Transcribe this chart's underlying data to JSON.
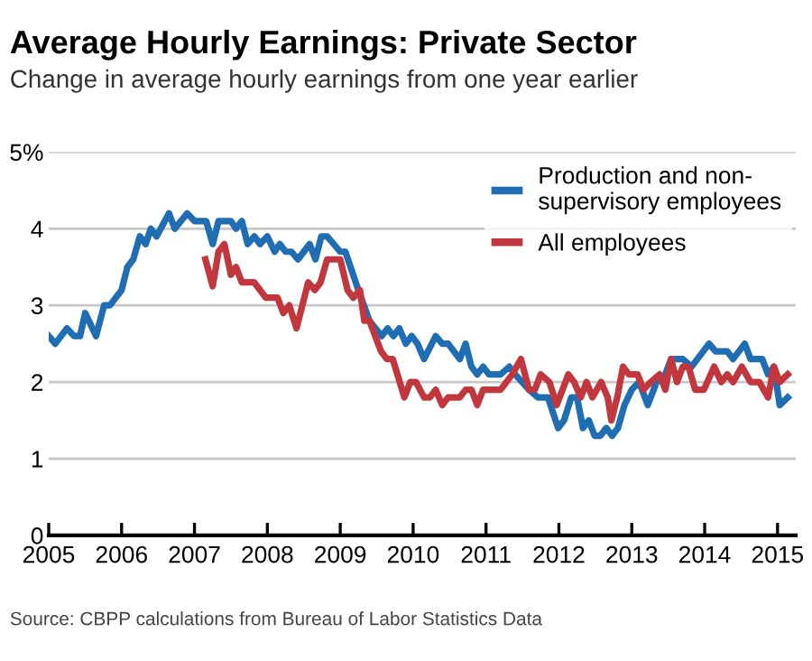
{
  "chart_data": {
    "type": "line",
    "title": "Average Hourly Earnings: Private Sector",
    "subtitle": "Change in average hourly earnings from one year earlier",
    "annotations": [
      "Source: CBPP calculations from Bureau of Labor Statistics Data"
    ],
    "series": [
      {
        "name": "Production and non-\nsupervisory employees",
        "color": "#1f6db3",
        "x": [
          2005.0,
          2005.09,
          2005.25,
          2005.35,
          2005.43,
          2005.5,
          2005.65,
          2005.76,
          2005.84,
          2006.0,
          2006.08,
          2006.16,
          2006.25,
          2006.33,
          2006.4,
          2006.48,
          2006.65,
          2006.73,
          2006.9,
          2007.0,
          2007.16,
          2007.25,
          2007.33,
          2007.5,
          2007.57,
          2007.65,
          2007.73,
          2007.82,
          2007.9,
          2008.0,
          2008.1,
          2008.17,
          2008.25,
          2008.33,
          2008.42,
          2008.58,
          2008.66,
          2008.74,
          2008.82,
          2009.0,
          2009.07,
          2009.23,
          2009.4,
          2009.57,
          2009.65,
          2009.73,
          2009.81,
          2009.9,
          2009.98,
          2010.06,
          2010.15,
          2010.31,
          2010.4,
          2010.48,
          2010.56,
          2010.64,
          2010.72,
          2010.8,
          2010.88,
          2010.96,
          2011.04,
          2011.2,
          2011.32,
          2011.4,
          2011.59,
          2011.71,
          2011.85,
          2011.99,
          2012.07,
          2012.17,
          2012.25,
          2012.33,
          2012.41,
          2012.49,
          2012.57,
          2012.65,
          2012.73,
          2012.81,
          2012.9,
          2013.0,
          2013.1,
          2013.22,
          2013.34,
          2013.46,
          2013.54,
          2013.62,
          2013.7,
          2013.82,
          2013.9,
          2014.06,
          2014.15,
          2014.31,
          2014.39,
          2014.55,
          2014.63,
          2014.79,
          2014.87,
          2014.95,
          2015.03,
          2015.14
        ],
        "values": [
          2.6,
          2.5,
          2.7,
          2.6,
          2.6,
          2.9,
          2.6,
          3.0,
          3.0,
          3.2,
          3.5,
          3.6,
          3.9,
          3.8,
          4.0,
          3.9,
          4.2,
          4.0,
          4.2,
          4.1,
          4.1,
          3.8,
          4.1,
          4.1,
          4.0,
          4.1,
          3.8,
          3.9,
          3.8,
          3.9,
          3.7,
          3.8,
          3.7,
          3.7,
          3.6,
          3.8,
          3.6,
          3.9,
          3.9,
          3.7,
          3.7,
          3.25,
          2.8,
          2.6,
          2.7,
          2.6,
          2.7,
          2.5,
          2.6,
          2.5,
          2.3,
          2.6,
          2.5,
          2.5,
          2.4,
          2.3,
          2.5,
          2.2,
          2.1,
          2.2,
          2.1,
          2.1,
          2.2,
          2.1,
          1.9,
          1.8,
          1.8,
          1.4,
          1.5,
          1.8,
          1.8,
          1.4,
          1.5,
          1.3,
          1.3,
          1.4,
          1.3,
          1.4,
          1.7,
          1.9,
          2.0,
          1.7,
          2.0,
          2.1,
          2.3,
          2.3,
          2.3,
          2.2,
          2.3,
          2.5,
          2.4,
          2.4,
          2.3,
          2.5,
          2.3,
          2.3,
          2.1,
          2.2,
          1.7,
          1.8
        ]
      },
      {
        "name": "All employees",
        "color": "#c1373d",
        "x": [
          2007.15,
          2007.25,
          2007.33,
          2007.41,
          2007.5,
          2007.57,
          2007.65,
          2007.82,
          2007.98,
          2008.14,
          2008.22,
          2008.3,
          2008.4,
          2008.56,
          2008.65,
          2008.73,
          2008.82,
          2009.0,
          2009.1,
          2009.18,
          2009.27,
          2009.33,
          2009.4,
          2009.56,
          2009.64,
          2009.72,
          2009.88,
          2009.96,
          2010.04,
          2010.15,
          2010.23,
          2010.31,
          2010.4,
          2010.48,
          2010.64,
          2010.72,
          2010.8,
          2010.88,
          2010.96,
          2011.2,
          2011.36,
          2011.48,
          2011.59,
          2011.67,
          2011.75,
          2011.87,
          2011.97,
          2012.13,
          2012.21,
          2012.3,
          2012.38,
          2012.46,
          2012.58,
          2012.67,
          2012.72,
          2012.8,
          2012.88,
          2012.96,
          2013.08,
          2013.16,
          2013.26,
          2013.38,
          2013.46,
          2013.54,
          2013.62,
          2013.7,
          2013.78,
          2013.87,
          2013.99,
          2014.13,
          2014.23,
          2014.31,
          2014.39,
          2014.51,
          2014.63,
          2014.75,
          2014.87,
          2014.95,
          2015.03,
          2015.14
        ],
        "values": [
          3.6,
          3.25,
          3.7,
          3.8,
          3.4,
          3.5,
          3.3,
          3.3,
          3.1,
          3.1,
          2.9,
          3.0,
          2.7,
          3.3,
          3.2,
          3.3,
          3.6,
          3.6,
          3.2,
          3.1,
          3.2,
          2.8,
          2.8,
          2.4,
          2.3,
          2.3,
          1.8,
          2.0,
          2.0,
          1.8,
          1.8,
          1.9,
          1.7,
          1.8,
          1.8,
          1.9,
          1.9,
          1.7,
          1.9,
          1.9,
          2.1,
          2.3,
          1.9,
          1.9,
          2.1,
          2.0,
          1.7,
          2.1,
          2.0,
          1.8,
          2.0,
          1.8,
          2.0,
          1.8,
          1.5,
          1.8,
          2.2,
          2.1,
          2.1,
          1.9,
          2.0,
          2.1,
          1.9,
          2.3,
          2.0,
          2.2,
          2.2,
          1.9,
          1.9,
          2.2,
          2.0,
          2.1,
          2.0,
          2.2,
          2.0,
          2.0,
          1.8,
          2.2,
          2.0,
          2.1
        ]
      }
    ],
    "xlim": [
      2005,
      2015.25
    ],
    "xticks": [
      2005,
      2006,
      2007,
      2008,
      2009,
      2010,
      2011,
      2012,
      2013,
      2014,
      2015
    ],
    "ylim": [
      0,
      5
    ],
    "yticks": [
      0,
      1,
      2,
      3,
      4,
      {
        "value": 5,
        "label": "5%"
      }
    ],
    "grid": "y",
    "legend": "top right",
    "marker": "none",
    "line_style": "solid"
  }
}
